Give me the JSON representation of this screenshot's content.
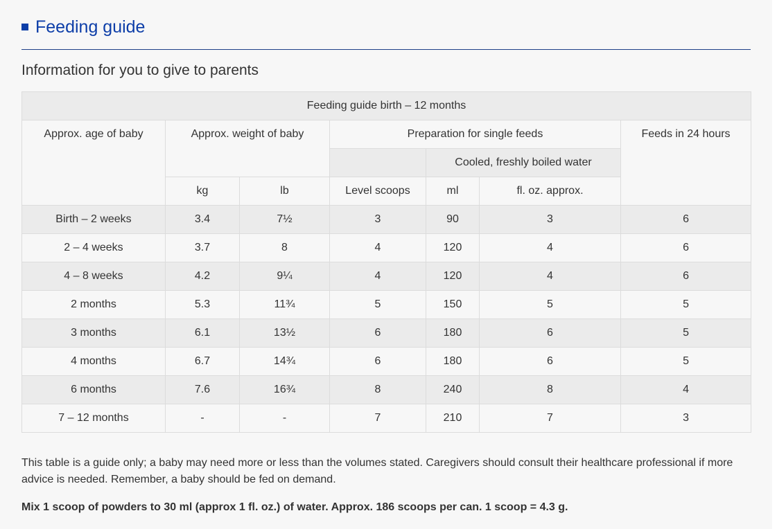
{
  "header": {
    "title": "Feeding guide",
    "subtitle": "Information for you to give to parents"
  },
  "table": {
    "caption": "Feeding guide birth – 12 months",
    "headers": {
      "age": "Approx. age of baby",
      "weight": "Approx. weight of baby",
      "preparation": "Preparation for single feeds",
      "feeds": "Feeds in 24 hours",
      "water": "Cooled, freshly boiled water",
      "kg": "kg",
      "lb": "lb",
      "scoops": "Level scoops",
      "ml": "ml",
      "floz": "fl. oz. approx."
    },
    "rows": [
      {
        "age": "Birth – 2 weeks",
        "kg": "3.4",
        "lb": "7½",
        "scoops": "3",
        "ml": "90",
        "floz": "3",
        "feeds": "6"
      },
      {
        "age": "2 – 4 weeks",
        "kg": "3.7",
        "lb": "8",
        "scoops": "4",
        "ml": "120",
        "floz": "4",
        "feeds": "6"
      },
      {
        "age": "4 – 8 weeks",
        "kg": "4.2",
        "lb": "9¼",
        "scoops": "4",
        "ml": "120",
        "floz": "4",
        "feeds": "6"
      },
      {
        "age": "2 months",
        "kg": "5.3",
        "lb": "11¾",
        "scoops": "5",
        "ml": "150",
        "floz": "5",
        "feeds": "5"
      },
      {
        "age": "3 months",
        "kg": "6.1",
        "lb": "13½",
        "scoops": "6",
        "ml": "180",
        "floz": "6",
        "feeds": "5"
      },
      {
        "age": "4 months",
        "kg": "6.7",
        "lb": "14¾",
        "scoops": "6",
        "ml": "180",
        "floz": "6",
        "feeds": "5"
      },
      {
        "age": "6 months",
        "kg": "7.6",
        "lb": "16¾",
        "scoops": "8",
        "ml": "240",
        "floz": "8",
        "feeds": "4"
      },
      {
        "age": "7 – 12 months",
        "kg": "-",
        "lb": "-",
        "scoops": "7",
        "ml": "210",
        "floz": "7",
        "feeds": "3"
      }
    ]
  },
  "notes": {
    "guide": "This table is a guide only; a baby may need more or less than the volumes stated. Caregivers should consult their healthcare professional if more advice is needed. Remember, a baby should be fed on demand.",
    "mix": "Mix 1 scoop of powders to 30 ml (approx 1 fl. oz.) of water. Approx. 186 scoops per can. 1 scoop = 4.3 g."
  },
  "colors": {
    "accent": "#0d3ea8",
    "rule": "#1d3f87",
    "row_grey": "#ebebeb",
    "row_light": "#f7f7f7",
    "border": "#dcdcdc"
  }
}
